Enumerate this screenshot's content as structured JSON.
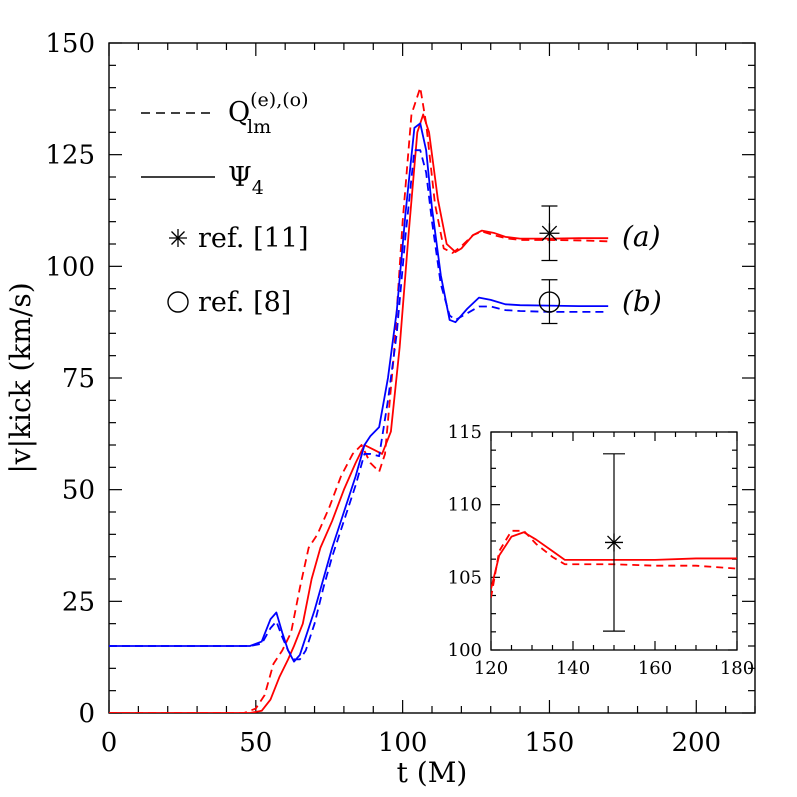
{
  "chart_data": [
    {
      "type": "line",
      "xlabel": "t (M)",
      "ylabel": "|v|kick (km/s)",
      "xlim": [
        0,
        220
      ],
      "ylim": [
        0,
        150
      ],
      "xticks": [
        0,
        50,
        100,
        150,
        200
      ],
      "yticks": [
        0,
        25,
        50,
        75,
        100,
        125,
        150
      ],
      "grid": false,
      "legend_position": "top-left",
      "legend": {
        "dashed_label": "Q",
        "dashed_sub": "lm",
        "dashed_sup": "(e),(o)",
        "solid_label": "Ψ",
        "solid_sub": "4",
        "star_label": "ref. [11]",
        "circle_label": "ref. [8]"
      },
      "case_labels": [
        {
          "text": "(a)",
          "y": 107
        },
        {
          "text": "(b)",
          "y": 92
        }
      ],
      "colors": {
        "case_a": "#ff0000",
        "case_b": "#0000ff",
        "reference": "#000000"
      },
      "series": [
        {
          "case": "a",
          "style": "solid",
          "color": "#ff0000",
          "x": [
            0,
            30,
            48,
            52,
            55,
            58,
            61,
            63,
            66,
            69,
            72,
            76,
            80,
            84,
            87,
            90,
            93,
            96,
            99,
            102,
            105,
            107,
            109,
            112,
            115,
            118,
            120,
            124,
            127,
            131,
            135,
            140,
            150,
            160,
            170
          ],
          "y": [
            0,
            0,
            0,
            0.5,
            3,
            8,
            12,
            15,
            20,
            30,
            37,
            43,
            50,
            56,
            60,
            59,
            58,
            63,
            82,
            107,
            130,
            134,
            130,
            115,
            105,
            103.2,
            104,
            107,
            108,
            107.5,
            106.6,
            106.2,
            106.2,
            106.3,
            106.3
          ]
        },
        {
          "case": "a",
          "style": "dashed",
          "color": "#ff0000",
          "x": [
            0,
            30,
            46,
            50,
            53,
            56,
            59,
            62,
            65,
            68,
            71,
            75,
            79,
            83,
            86,
            89,
            92,
            94,
            97,
            100,
            103,
            106,
            108,
            111,
            114,
            117,
            120,
            124,
            127,
            131,
            135,
            140,
            150,
            160,
            170
          ],
          "y": [
            0,
            0,
            0,
            1,
            4,
            11,
            14,
            18,
            28,
            37,
            40,
            46,
            53,
            58,
            60,
            56,
            54,
            58,
            80,
            110,
            134,
            140,
            132,
            114,
            104,
            103,
            104.5,
            107,
            107.8,
            107,
            106.3,
            105.9,
            105.9,
            105.8,
            105.6
          ]
        },
        {
          "case": "b",
          "style": "solid",
          "color": "#0000ff",
          "x": [
            0,
            30,
            48,
            52,
            55,
            57,
            59,
            61,
            63,
            65,
            67,
            70,
            73,
            76,
            80,
            84,
            87,
            89,
            92,
            95,
            98,
            101,
            104,
            106,
            108,
            110,
            113,
            116,
            118,
            122,
            126,
            130,
            135,
            140,
            150,
            160,
            170
          ],
          "y": [
            15,
            15,
            15,
            16,
            21,
            22.5,
            18,
            14,
            11.5,
            13,
            17,
            23,
            30,
            37,
            45,
            53,
            60,
            62,
            64,
            75,
            90,
            112,
            131,
            132,
            126,
            113,
            98,
            88,
            87.5,
            90.5,
            93,
            92.5,
            91.5,
            91.3,
            91.2,
            91.1,
            91.1
          ]
        },
        {
          "case": "b",
          "style": "dashed",
          "color": "#0000ff",
          "x": [
            0,
            30,
            48,
            52,
            55,
            57,
            59,
            61,
            63,
            65,
            67,
            70,
            73,
            76,
            80,
            84,
            87,
            89,
            92,
            95,
            98,
            101,
            104,
            106,
            108,
            110,
            113,
            116,
            118,
            122,
            126,
            130,
            135,
            140,
            150,
            160,
            170
          ],
          "y": [
            15,
            15,
            15,
            15.5,
            19,
            20.5,
            17,
            14,
            12,
            12,
            14,
            20,
            28,
            35,
            43,
            51,
            58,
            58,
            57.5,
            70,
            85,
            107,
            126,
            126,
            121,
            110,
            96,
            89,
            88,
            89.5,
            91,
            91,
            90.2,
            90,
            89.8,
            89.8,
            89.8
          ]
        }
      ],
      "references": [
        {
          "name": "ref. [11]",
          "marker": "star",
          "x": 150,
          "y": 107.4,
          "yerr_low": 101.3,
          "yerr_high": 113.5
        },
        {
          "name": "ref. [8]",
          "marker": "circle",
          "x": 150,
          "y": 92,
          "yerr_low": 87.2,
          "yerr_high": 97
        }
      ]
    },
    {
      "type": "line",
      "inset": true,
      "xlim": [
        120,
        180
      ],
      "ylim": [
        100,
        115
      ],
      "xticks": [
        120,
        140,
        160,
        180
      ],
      "yticks": [
        100,
        105,
        110,
        115
      ],
      "series": [
        {
          "style": "solid",
          "color": "#ff0000",
          "x": [
            120,
            122,
            125,
            128,
            131,
            135,
            138,
            142,
            150,
            160,
            170,
            180
          ],
          "y": [
            104.2,
            106.5,
            107.8,
            108.1,
            107.6,
            106.8,
            106.2,
            106.2,
            106.2,
            106.2,
            106.3,
            106.3
          ]
        },
        {
          "style": "dashed",
          "color": "#ff0000",
          "x": [
            120,
            122,
            125,
            128,
            131,
            135,
            138,
            142,
            150,
            160,
            170,
            180
          ],
          "y": [
            103.6,
            106.8,
            108.2,
            108.2,
            107.3,
            106.4,
            105.9,
            105.9,
            105.9,
            105.8,
            105.8,
            105.6
          ]
        }
      ],
      "references": [
        {
          "marker": "star",
          "x": 150,
          "y": 107.4,
          "yerr_low": 101.3,
          "yerr_high": 113.5
        }
      ]
    }
  ]
}
